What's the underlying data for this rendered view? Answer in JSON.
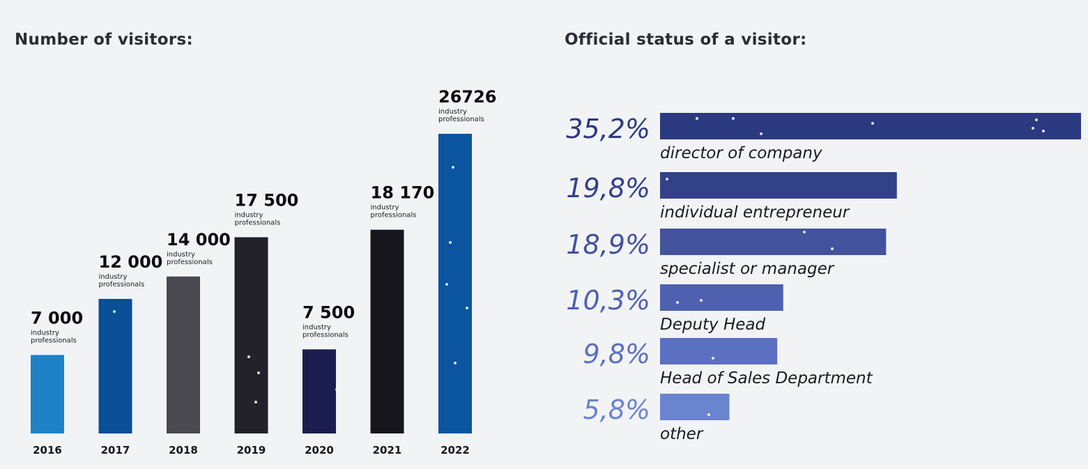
{
  "visitors": {
    "title": "Number of visitors:"
  },
  "status": {
    "title": "Official status of a visitor:"
  },
  "chart_data": [
    {
      "type": "bar",
      "title": "Number of visitors:",
      "categories": [
        "2016",
        "2017",
        "2018",
        "2019",
        "2020",
        "2021",
        "2022"
      ],
      "values": [
        7000,
        12000,
        14000,
        17500,
        7500,
        18170,
        26726
      ],
      "value_labels": [
        "7 000",
        "12 000",
        "14 000",
        "17 500",
        "7 500",
        "18 170",
        "26726"
      ],
      "sublabel_lines": [
        "industry",
        "professionals"
      ],
      "colors": [
        "#1e82c7",
        "#0a4f97",
        "#4b4950",
        "#23222a",
        "#1c1d4f",
        "#17161d",
        "#0a54a0"
      ],
      "ylim": [
        0,
        26726
      ]
    },
    {
      "type": "bar",
      "orientation": "horizontal",
      "title": "Official status of a visitor:",
      "categories": [
        "director of company",
        "individual entrepreneur",
        "specialist or manager",
        "Deputy Head",
        "Head of Sales Department",
        "other"
      ],
      "values": [
        35.2,
        19.8,
        18.9,
        10.3,
        9.8,
        5.8
      ],
      "value_labels": [
        "35,2%",
        "19,8%",
        "18,9%",
        "10,3%",
        "9,8%",
        "5,8%"
      ],
      "unit": "%",
      "colors": [
        "#2b3980",
        "#33418a",
        "#43529c",
        "#4f60b0",
        "#5b70c0",
        "#6b84d0"
      ],
      "label_colors": [
        "#2b3980",
        "#33418a",
        "#43529c",
        "#4f60b0",
        "#5b70c0",
        "#6b84d0"
      ],
      "xlim": [
        0,
        35.2
      ]
    }
  ]
}
